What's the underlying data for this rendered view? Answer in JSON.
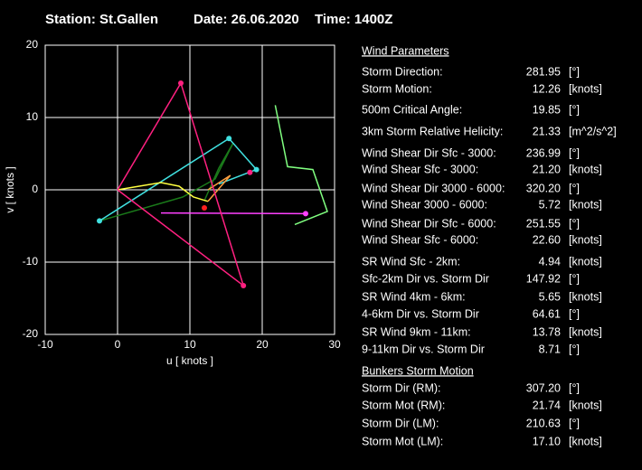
{
  "title": {
    "station": "Station:  St.Gallen",
    "date": "Date: 26.06.2020",
    "time": "Time: 1400Z"
  },
  "chart_data": {
    "type": "hodograph",
    "x_label": "u  [ knots ]",
    "y_label": "v  [ knots ]",
    "xlim": [
      -10,
      30
    ],
    "ylim": [
      -20,
      20
    ],
    "xticks": [
      -10,
      0,
      10,
      20,
      30
    ],
    "yticks": [
      -20,
      -10,
      0,
      10,
      20
    ],
    "grid": true,
    "series": [
      {
        "color": "#80ff80",
        "x": [
          21.8,
          23.5,
          27,
          29,
          24.5
        ],
        "values": [
          11.7,
          3.2,
          2.8,
          -3,
          -4.8
        ]
      },
      {
        "color": "#1a7a1a",
        "x": [
          -2.5,
          9,
          13.5,
          16,
          14,
          12
        ],
        "values": [
          -4.3,
          -1,
          1.5,
          6.5,
          3,
          -1.5
        ]
      },
      {
        "color": "#40e0e0",
        "x": [
          -2.5,
          15.4,
          19.2,
          14
        ],
        "values": [
          -4.3,
          7.1,
          2.8,
          0.8
        ]
      },
      {
        "color": "#ffff40",
        "x": [
          0,
          6,
          8.5,
          10.5,
          12.5
        ],
        "values": [
          0,
          1,
          0.5,
          -1,
          -1.6
        ]
      },
      {
        "color": "#ffa040",
        "x": [
          12.5,
          15.6,
          12.5
        ],
        "values": [
          -1.6,
          2,
          0
        ]
      },
      {
        "color": "#ff40ff",
        "x": [
          6,
          26
        ],
        "values": [
          -3.2,
          -3.3
        ]
      },
      {
        "color": "#ff2080",
        "x": [
          0,
          8.75,
          17.4,
          0
        ],
        "values": [
          0,
          14.75,
          -13.25,
          0
        ]
      }
    ],
    "points": [
      {
        "color": "#40e0e0",
        "x": [
          -2.5,
          15.4,
          19.2
        ],
        "values": [
          -4.3,
          7.1,
          2.8
        ]
      },
      {
        "color": "#ff2080",
        "x": [
          8.75,
          17.4,
          18.3
        ],
        "values": [
          14.75,
          -13.25,
          2.4
        ]
      },
      {
        "color": "#ff2020",
        "x": [
          12
        ],
        "values": [
          -2.5
        ]
      },
      {
        "color": "#ff40ff",
        "x": [
          26
        ],
        "values": [
          -3.3
        ]
      }
    ]
  },
  "parameters": {
    "header": "Wind Parameters",
    "rows": [
      {
        "label": "Storm Direction:",
        "value": "281.95",
        "unit": "[°]",
        "color": "#ff2020"
      },
      {
        "label": "Storm Motion:",
        "value": "12.26",
        "unit": "[knots]",
        "color": "#ff2020"
      },
      {
        "label": "500m Critical Angle:",
        "value": "19.85",
        "unit": "[°]",
        "color": "#e080ff"
      },
      {
        "label": "3km Storm Relative Helicity:",
        "value": "21.33",
        "unit": "[m^2/s^2]",
        "color": "#40e040"
      },
      {
        "label": "Wind Shear Dir Sfc - 3000:",
        "value": "236.99",
        "unit": "[°]",
        "color": "#40e0e0"
      },
      {
        "label": "Wind Shear Sfc - 3000:",
        "value": "21.20",
        "unit": "[knots]",
        "color": "#40e0e0"
      },
      {
        "label": "Wind Shear Dir 3000 - 6000:",
        "value": "320.20",
        "unit": "[°]",
        "color": "#40e0e0"
      },
      {
        "label": "Wind Shear 3000 - 6000:",
        "value": "5.72",
        "unit": "[knots]",
        "color": "#40e0e0"
      },
      {
        "label": "Wind Shear Dir Sfc - 6000:",
        "value": "251.55",
        "unit": "[°]",
        "color": "#40e0e0"
      },
      {
        "label": "Wind Shear Sfc - 6000:",
        "value": "22.60",
        "unit": "[knots]",
        "color": "#40e0e0"
      },
      {
        "label": "SR Wind Sfc - 2km:",
        "value": "4.94",
        "unit": "[knots]",
        "color": "#ffff40"
      },
      {
        "label": "Sfc-2km Dir vs. Storm Dir",
        "value": "147.92",
        "unit": "[°]",
        "color": "#ffff40"
      },
      {
        "label": "SR Wind 4km - 6km:",
        "value": "5.65",
        "unit": "[knots]",
        "color": "#ffa040"
      },
      {
        "label": "4-6km Dir vs. Storm Dir",
        "value": "64.61",
        "unit": "[°]",
        "color": "#ffa040"
      },
      {
        "label": "SR Wind 9km - 11km:",
        "value": "13.78",
        "unit": "[knots]",
        "color": "#ff40ff"
      },
      {
        "label": "9-11km Dir vs. Storm Dir",
        "value": "8.71",
        "unit": "[°]",
        "color": "#ff40ff"
      }
    ],
    "bunkers_header": "Bunkers Storm Motion",
    "bunkers_rows": [
      {
        "label": "Storm Dir (RM):",
        "value": "307.20",
        "unit": "[°]",
        "color": "#ff2080"
      },
      {
        "label": "Storm Mot (RM):",
        "value": "21.74",
        "unit": "[knots]",
        "color": "#ff2080"
      },
      {
        "label": "Storm Dir (LM):",
        "value": "210.63",
        "unit": "[°]",
        "color": "#ff2080"
      },
      {
        "label": "Storm Mot (LM):",
        "value": "17.10",
        "unit": "[knots]",
        "color": "#ff2080"
      }
    ]
  }
}
